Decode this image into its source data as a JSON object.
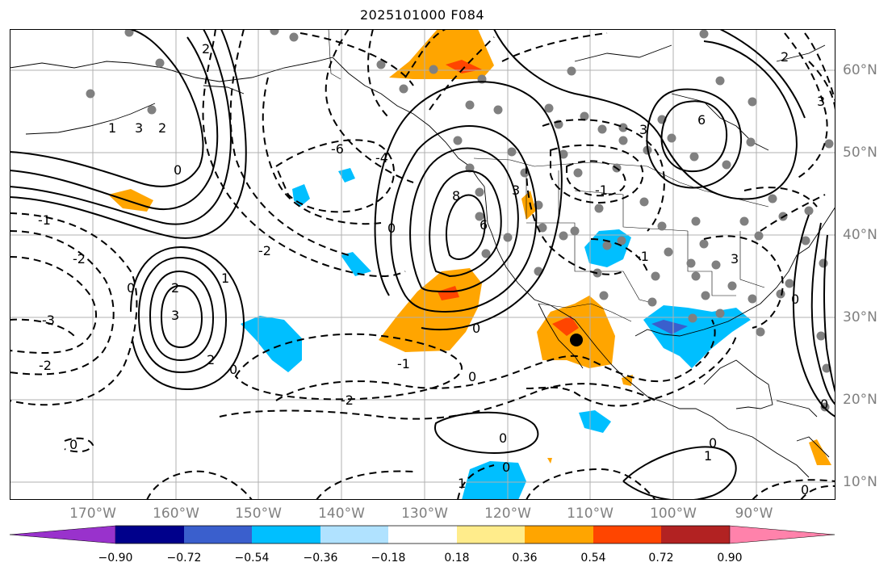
{
  "title": "2025101000 F084",
  "colorbar": {
    "ticks": [
      "−0.90",
      "−0.72",
      "−0.54",
      "−0.36",
      "−0.18",
      "0.18",
      "0.36",
      "0.54",
      "0.72",
      "0.90"
    ],
    "colors": [
      "#9932cc",
      "#00008b",
      "#3a5fcd",
      "#00bfff",
      "#b0e2ff",
      "#ffffff",
      "#ffec8b",
      "#ffa500",
      "#ff4500",
      "#b22222",
      "#ff82ab"
    ]
  },
  "axes": {
    "lon_labels": [
      "170°W",
      "160°W",
      "150°W",
      "140°W",
      "130°W",
      "120°W",
      "110°W",
      "100°W",
      "90°W"
    ],
    "lat_labels": [
      "60°N",
      "50°N",
      "40°N",
      "30°N",
      "20°N",
      "10°N"
    ]
  },
  "contour_labels": [
    "2",
    "3",
    "1",
    "0",
    "-1",
    "-2",
    "-3",
    "-4",
    "-6",
    "-8",
    "6",
    "8"
  ]
}
